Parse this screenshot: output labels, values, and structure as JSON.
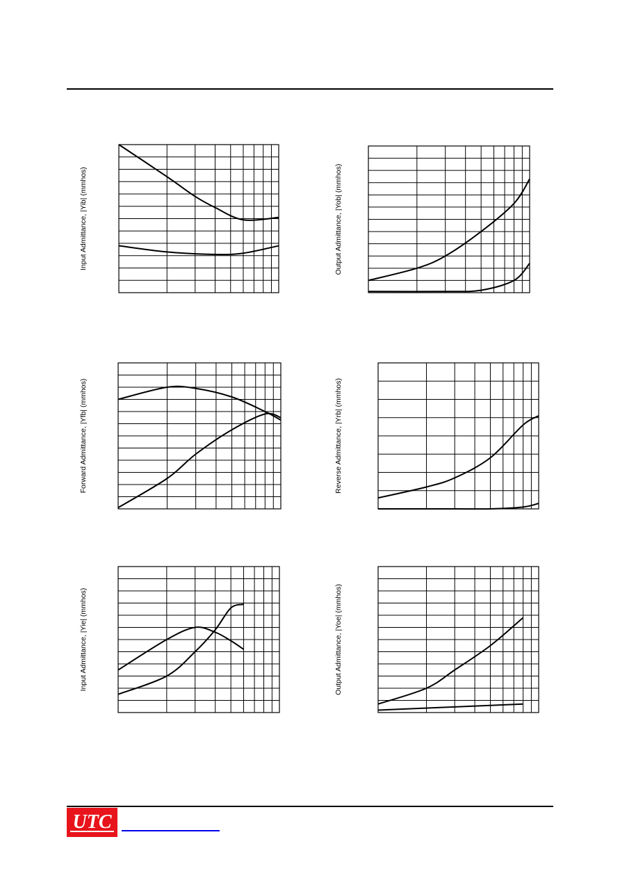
{
  "chart_data": [
    {
      "type": "line",
      "ylabel": "Input Admittance, |Yib| (mmhos)",
      "xscale": "log",
      "yrange": [
        0,
        12
      ],
      "series": [
        {
          "x": [
            1,
            2,
            3,
            4,
            6,
            10
          ],
          "y": [
            12.0,
            9.4,
            7.8,
            6.9,
            5.9,
            6.1
          ]
        },
        {
          "x": [
            1,
            2,
            4,
            6,
            10
          ],
          "y": [
            3.8,
            3.3,
            3.1,
            3.2,
            3.8
          ]
        }
      ]
    },
    {
      "type": "line",
      "ylabel": "Output Admittance, |Yob| (mmhos)",
      "xscale": "log",
      "yrange": [
        0,
        12
      ],
      "series": [
        {
          "x": [
            1,
            2,
            3,
            5,
            8,
            10
          ],
          "y": [
            1.0,
            2.0,
            3.0,
            5.0,
            7.3,
            9.3
          ]
        },
        {
          "x": [
            1,
            3,
            5,
            8,
            10
          ],
          "y": [
            0.1,
            0.1,
            0.2,
            1.0,
            2.4
          ]
        }
      ]
    },
    {
      "type": "line",
      "ylabel": "Forward Admittance, |Yfb| (mmhos)",
      "xscale": "log",
      "yrange": [
        0,
        12
      ],
      "series": [
        {
          "x": [
            1,
            2,
            3,
            5,
            8,
            10
          ],
          "y": [
            9.0,
            10.0,
            9.9,
            9.2,
            8.0,
            7.3
          ]
        },
        {
          "x": [
            1,
            2,
            3,
            5,
            8,
            10
          ],
          "y": [
            0.1,
            2.5,
            4.5,
            6.5,
            7.8,
            7.5
          ]
        }
      ]
    },
    {
      "type": "line",
      "ylabel": "Reverse Admittance, |Yrb| (mmhos)",
      "xscale": "log",
      "yrange": [
        0,
        8
      ],
      "series": [
        {
          "x": [
            1,
            2,
            3,
            5,
            8,
            10
          ],
          "y": [
            0.6,
            1.2,
            1.7,
            2.8,
            4.6,
            5.1
          ]
        },
        {
          "x": [
            1,
            3,
            5,
            8,
            10
          ],
          "y": [
            0.0,
            0.0,
            0.0,
            0.1,
            0.3
          ]
        }
      ]
    },
    {
      "type": "line",
      "ylabel": "Input Admittance, |Yie| (mmhos)",
      "xscale": "log",
      "yrange": [
        0,
        12
      ],
      "series": [
        {
          "x": [
            1,
            2,
            3,
            4,
            5,
            6
          ],
          "y": [
            3.5,
            6.0,
            7.0,
            6.6,
            5.9,
            5.2
          ]
        },
        {
          "x": [
            1,
            2,
            3,
            4,
            5,
            6
          ],
          "y": [
            1.5,
            3.0,
            5.0,
            6.8,
            8.6,
            8.9
          ]
        }
      ]
    },
    {
      "type": "line",
      "ylabel": "Output Admittance, |Yoe| (mmhos)",
      "xscale": "log",
      "yrange": [
        0,
        12
      ],
      "series": [
        {
          "x": [
            1,
            2,
            3,
            5,
            8
          ],
          "y": [
            0.7,
            2.0,
            3.5,
            5.5,
            7.8
          ]
        },
        {
          "x": [
            1,
            8
          ],
          "y": [
            0.2,
            0.7
          ]
        }
      ]
    }
  ],
  "footer": {
    "logo_text": "UTC"
  },
  "colors": {
    "logo_red": "#e8141b",
    "link_blue": "#0000ee"
  }
}
